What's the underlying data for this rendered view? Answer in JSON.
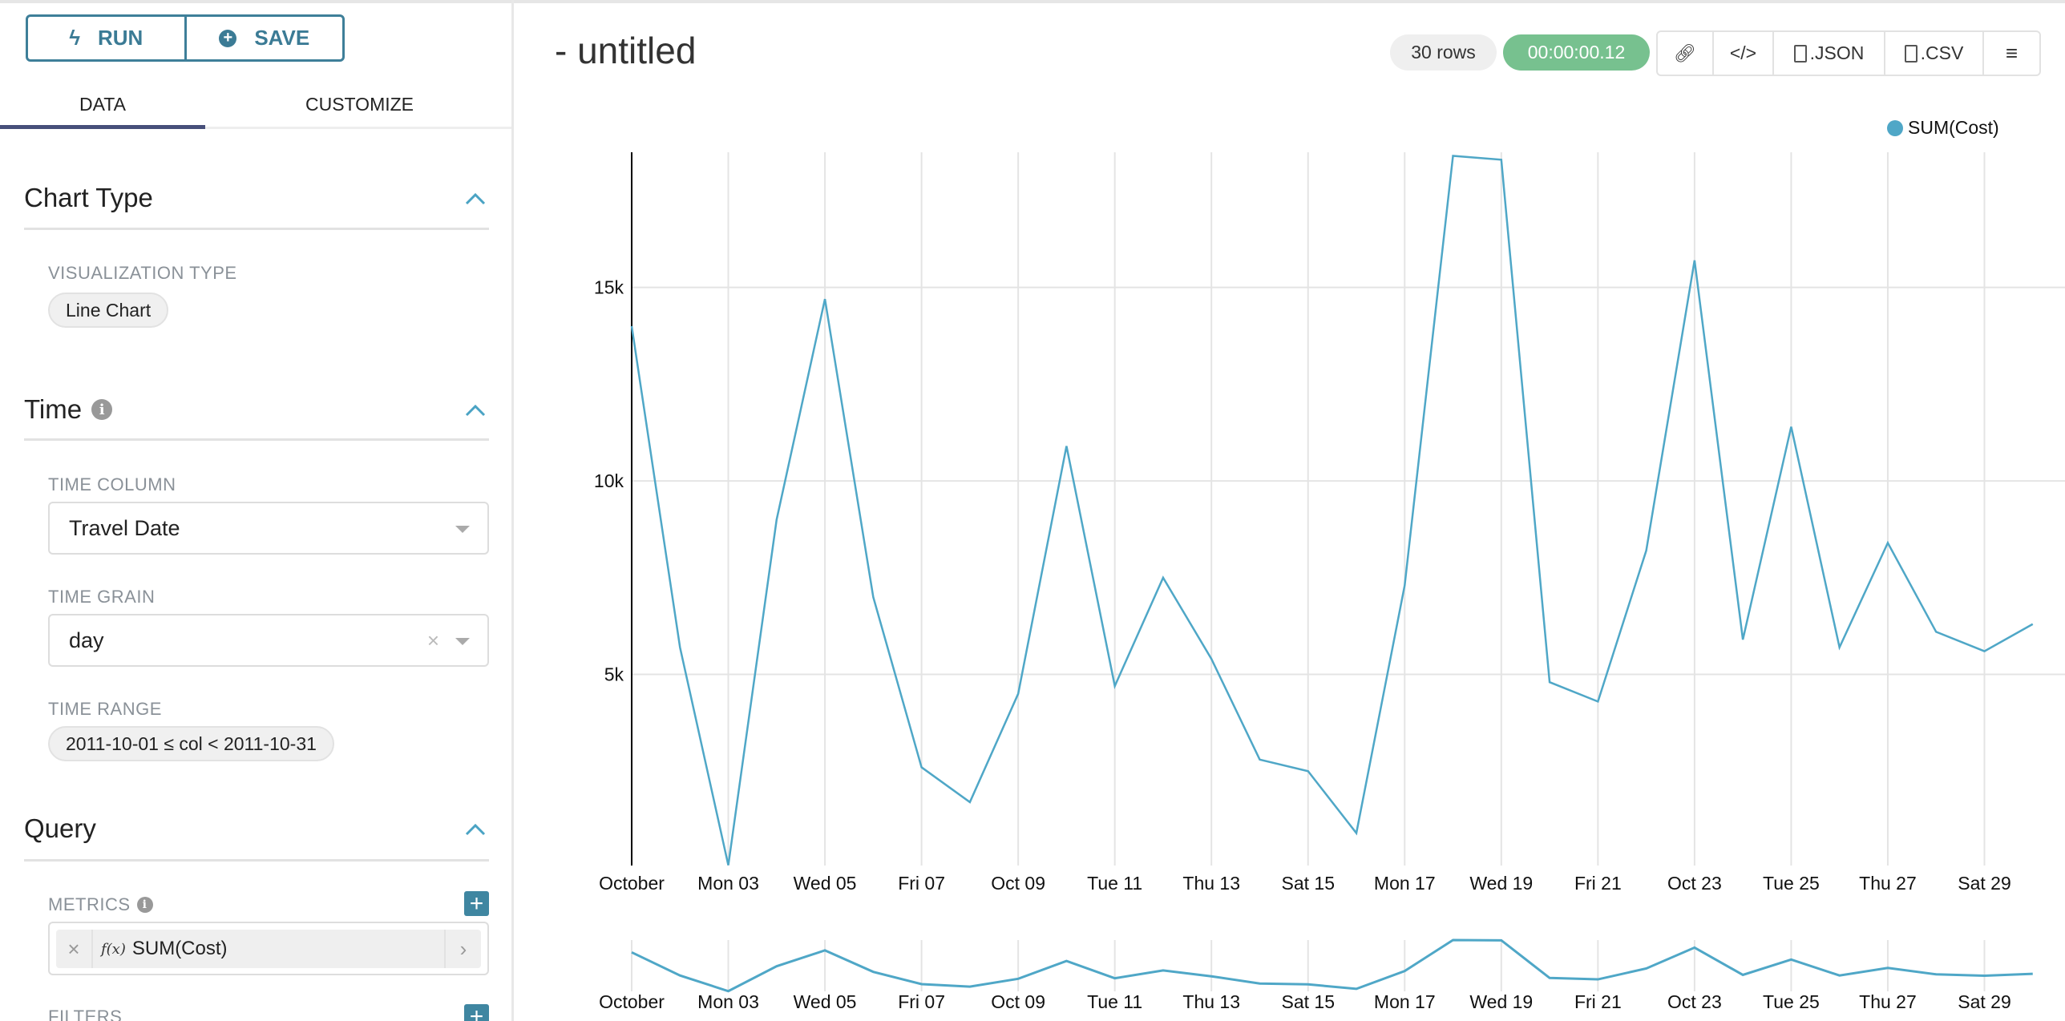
{
  "toolbar": {
    "run_label": "RUN",
    "save_label": "SAVE"
  },
  "tabs": [
    {
      "label": "DATA",
      "active": true
    },
    {
      "label": "CUSTOMIZE",
      "active": false
    }
  ],
  "sections": {
    "chart_type": {
      "title": "Chart Type",
      "viz_label": "VISUALIZATION TYPE",
      "viz_value": "Line Chart"
    },
    "time": {
      "title": "Time",
      "column_label": "TIME COLUMN",
      "column_value": "Travel Date",
      "grain_label": "TIME GRAIN",
      "grain_value": "day",
      "range_label": "TIME RANGE",
      "range_value": "2011-10-01 ≤ col < 2011-10-31"
    },
    "query": {
      "title": "Query",
      "metrics_label": "METRICS",
      "metric_value": "SUM(Cost)",
      "metric_prefix": "f(x)",
      "filters_label": "FILTERS"
    }
  },
  "header": {
    "title": "- untitled",
    "rows": "30 rows",
    "timer": "00:00:00.12",
    "json_label": ".JSON",
    "csv_label": ".CSV"
  },
  "colors": {
    "accent": "#3e7f99",
    "series": "#4fa7c7",
    "timer": "#77c18f"
  },
  "chart_data": {
    "type": "line",
    "legend": {
      "entries": [
        "SUM(Cost)"
      ],
      "placement": "top-right"
    },
    "x": [
      "2011-10-01",
      "2011-10-02",
      "2011-10-03",
      "2011-10-04",
      "2011-10-05",
      "2011-10-06",
      "2011-10-07",
      "2011-10-08",
      "2011-10-09",
      "2011-10-10",
      "2011-10-11",
      "2011-10-12",
      "2011-10-13",
      "2011-10-14",
      "2011-10-15",
      "2011-10-16",
      "2011-10-17",
      "2011-10-18",
      "2011-10-19",
      "2011-10-20",
      "2011-10-21",
      "2011-10-22",
      "2011-10-23",
      "2011-10-24",
      "2011-10-25",
      "2011-10-26",
      "2011-10-27",
      "2011-10-28",
      "2011-10-29",
      "2011-10-30"
    ],
    "series": [
      {
        "name": "SUM(Cost)",
        "values": [
          14000,
          5700,
          70,
          9000,
          14700,
          7000,
          2600,
          1700,
          4500,
          10900,
          4700,
          7500,
          5400,
          2800,
          2500,
          900,
          7300,
          18400,
          18300,
          4800,
          4300,
          8200,
          15700,
          5900,
          11400,
          5700,
          8400,
          6100,
          5600,
          6300
        ]
      }
    ],
    "x_tick_labels": [
      "October",
      "Mon 03",
      "Wed 05",
      "Fri 07",
      "Oct 09",
      "Tue 11",
      "Thu 13",
      "Sat 15",
      "Mon 17",
      "Wed 19",
      "Fri 21",
      "Oct 23",
      "Tue 25",
      "Thu 27",
      "Sat 29"
    ],
    "y_ticks": [
      5000,
      10000,
      15000
    ],
    "y_tick_labels": [
      "5k",
      "10k",
      "15k"
    ],
    "ylim": [
      0,
      18400
    ],
    "grid": true,
    "range_selector": true
  }
}
